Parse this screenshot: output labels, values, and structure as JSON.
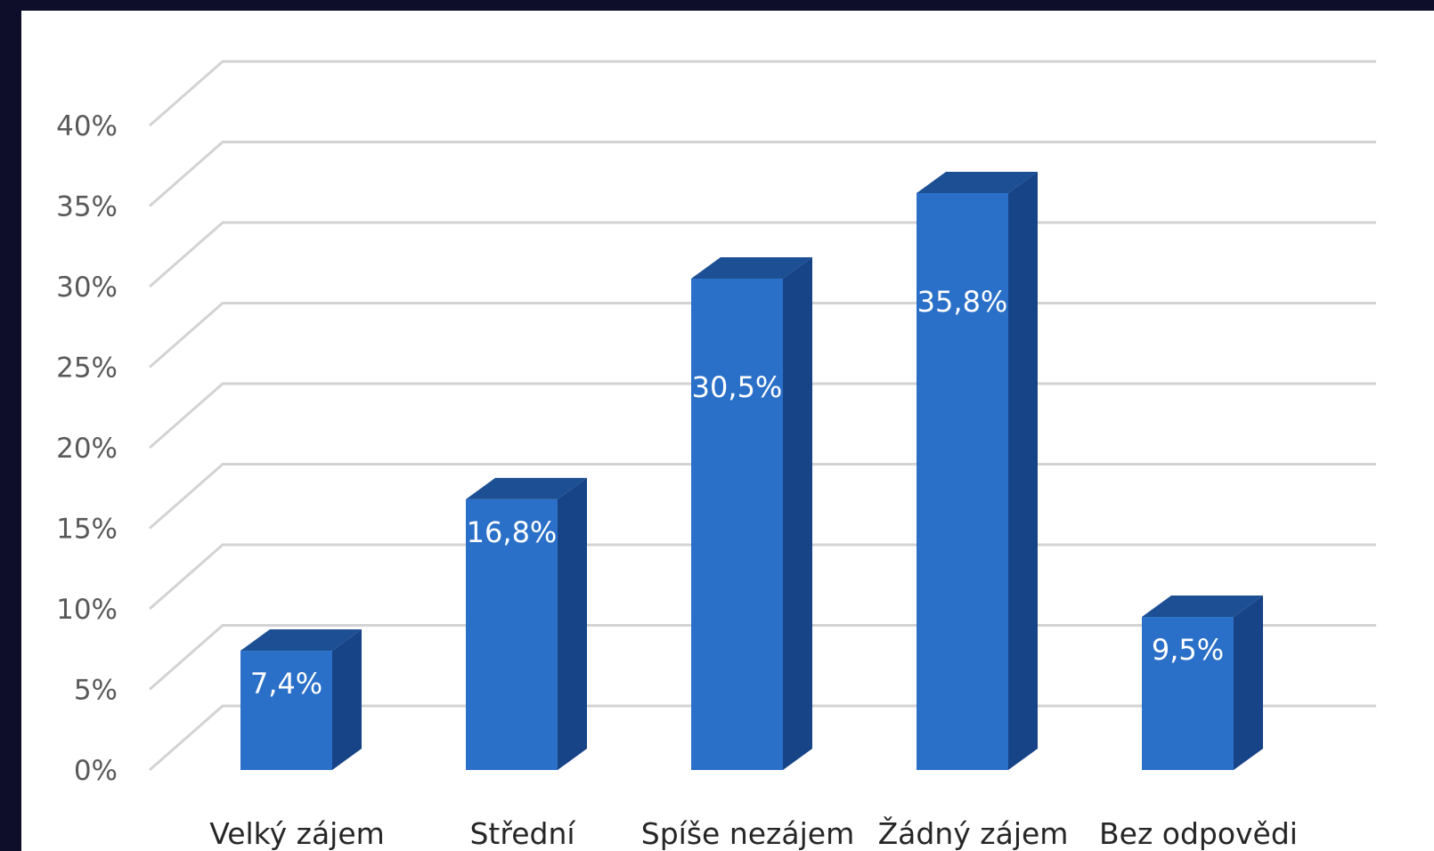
{
  "colors": {
    "background": "#0e0e2a",
    "plot_background": "#ffffff",
    "bar_front": "#2a70c8",
    "bar_top": "#1d4f94",
    "bar_side": "#174387",
    "gridline": "#d3d3d3",
    "data_label": "#ffffff"
  },
  "chart_data": {
    "type": "bar",
    "style": "3d-column",
    "title": "",
    "xlabel": "",
    "ylabel": "",
    "categories": [
      "Velký zájem",
      "Střední",
      "Spíše nezájem",
      "Žádný zájem",
      "Bez odpovědi"
    ],
    "values": [
      7.4,
      16.8,
      30.5,
      35.8,
      9.5
    ],
    "data_labels": [
      "7,4%",
      "16,8%",
      "30,5%",
      "35,8%",
      "9,5%"
    ],
    "ylim": [
      0,
      40
    ],
    "y_ticks": [
      0,
      5,
      10,
      15,
      20,
      25,
      30,
      35,
      40
    ],
    "y_tick_labels": [
      "0%",
      "5%",
      "10%",
      "15%",
      "20%",
      "25%",
      "30%",
      "35%",
      "40%"
    ],
    "grid": true,
    "legend": "none"
  }
}
